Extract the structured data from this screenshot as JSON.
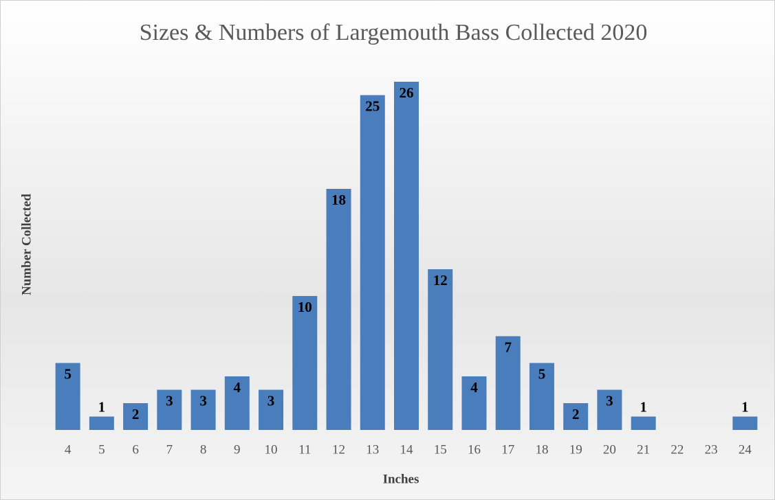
{
  "chart_data": {
    "type": "bar",
    "title": "Sizes & Numbers of Largemouth Bass Collected 2020",
    "x_label": "Inches",
    "y_label": "Number Collected",
    "categories": [
      "4",
      "5",
      "6",
      "7",
      "8",
      "9",
      "10",
      "11",
      "12",
      "13",
      "14",
      "15",
      "16",
      "17",
      "18",
      "19",
      "20",
      "21",
      "22",
      "23",
      "24"
    ],
    "values": [
      5,
      1,
      2,
      3,
      3,
      4,
      3,
      10,
      18,
      25,
      26,
      12,
      4,
      7,
      5,
      2,
      3,
      1,
      null,
      null,
      1
    ],
    "color": "#4a7dbb"
  }
}
